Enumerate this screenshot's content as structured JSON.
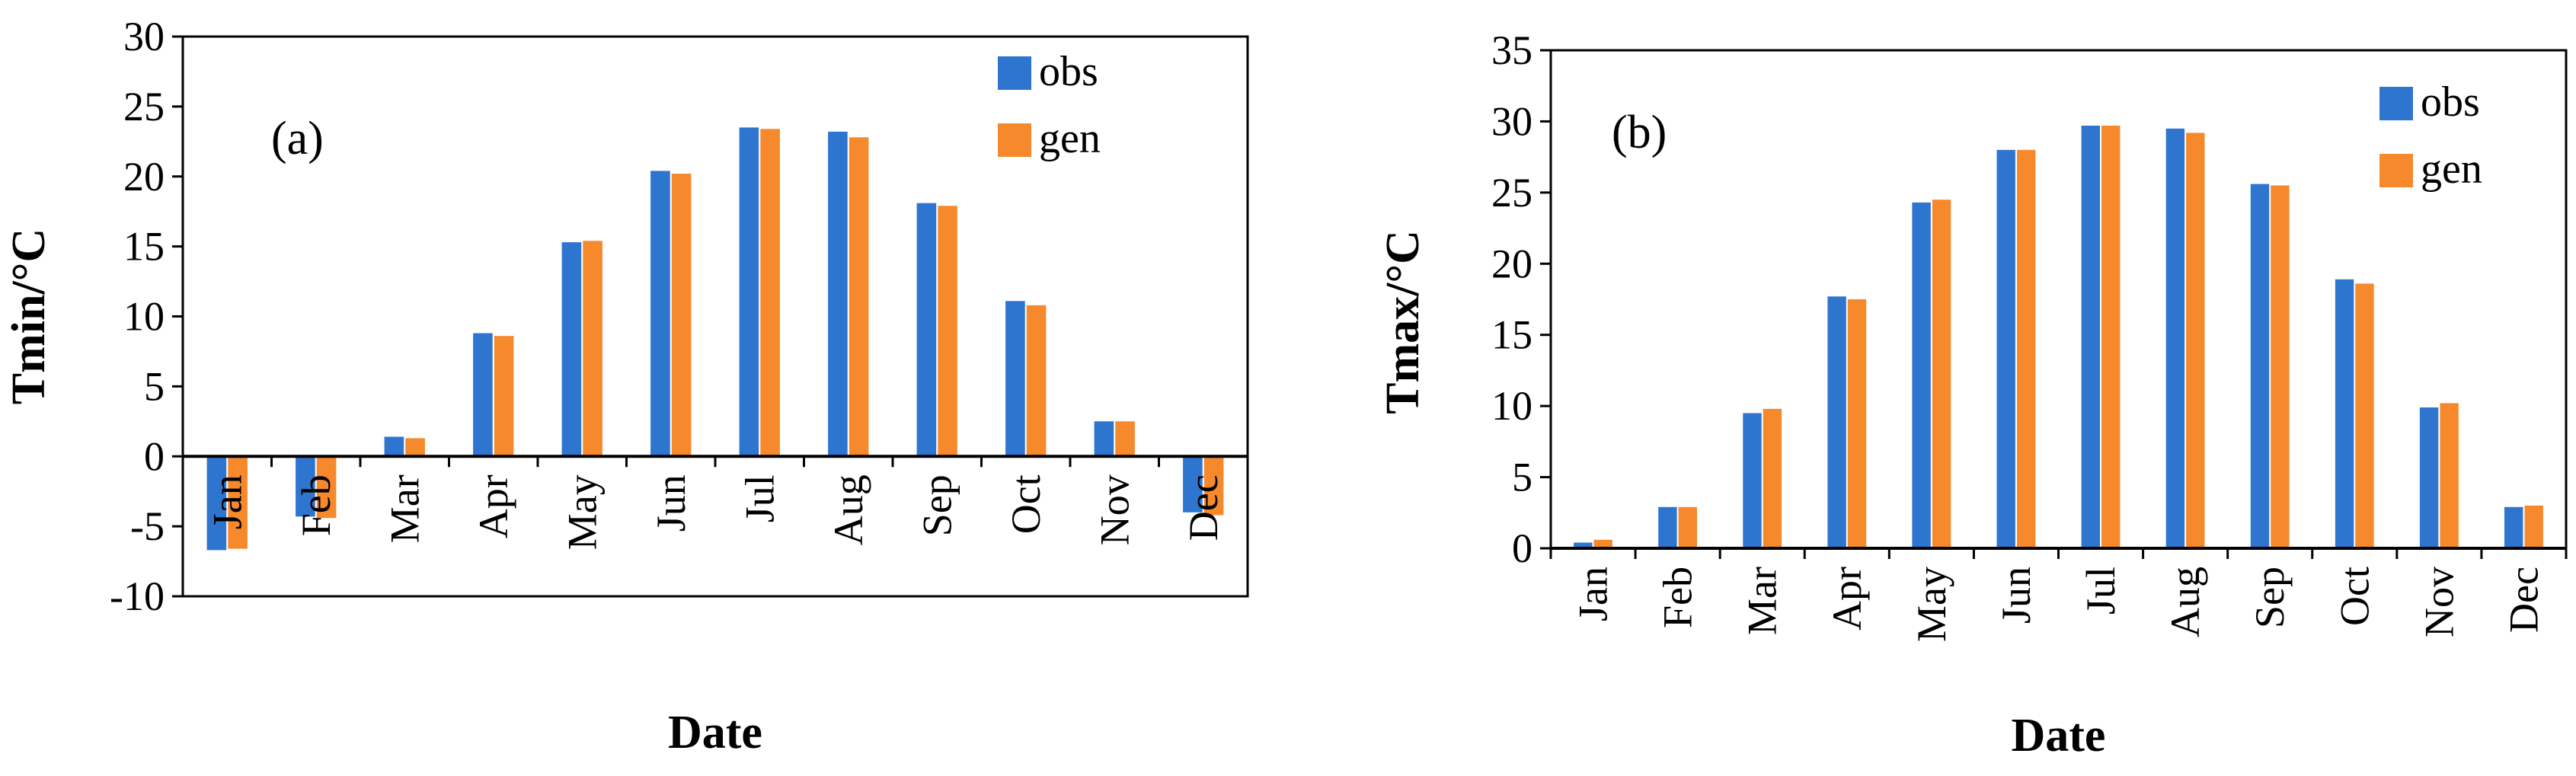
{
  "chart_data": [
    {
      "type": "bar",
      "panel_label": "(a)",
      "categories": [
        "Jan",
        "Feb",
        "Mar",
        "Apr",
        "May",
        "Jun",
        "Jul",
        "Aug",
        "Sep",
        "Oct",
        "Nov",
        "Dec"
      ],
      "series": [
        {
          "name": "obs",
          "color": "#2E75D0",
          "values": [
            -6.7,
            -4.3,
            1.4,
            8.8,
            15.3,
            20.4,
            23.5,
            23.2,
            18.1,
            11.1,
            2.5,
            -4.0
          ]
        },
        {
          "name": "gen",
          "color": "#F7892D",
          "values": [
            -6.6,
            -4.4,
            1.3,
            8.6,
            15.4,
            20.2,
            23.4,
            22.8,
            17.9,
            10.8,
            2.5,
            -4.2
          ]
        }
      ],
      "xlabel": "Date",
      "ylabel": "Tmin/°C",
      "ylim": [
        -10,
        30
      ],
      "yticks": [
        -10,
        -5,
        0,
        5,
        10,
        15,
        20,
        25,
        30
      ],
      "grid": false,
      "legend": "top-right"
    },
    {
      "type": "bar",
      "panel_label": "(b)",
      "categories": [
        "Jan",
        "Feb",
        "Mar",
        "Apr",
        "May",
        "Jun",
        "Jul",
        "Aug",
        "Sep",
        "Oct",
        "Nov",
        "Dec"
      ],
      "series": [
        {
          "name": "obs",
          "color": "#2E75D0",
          "values": [
            0.4,
            2.9,
            9.5,
            17.7,
            24.3,
            28.0,
            29.7,
            29.5,
            25.6,
            18.9,
            9.9,
            2.9
          ]
        },
        {
          "name": "gen",
          "color": "#F7892D",
          "values": [
            0.6,
            2.9,
            9.8,
            17.5,
            24.5,
            28.0,
            29.7,
            29.2,
            25.5,
            18.6,
            10.2,
            3.0
          ]
        }
      ],
      "xlabel": "Date",
      "ylabel": "Tmax/°C",
      "ylim": [
        0,
        35
      ],
      "yticks": [
        0,
        5,
        10,
        15,
        20,
        25,
        30,
        35
      ],
      "grid": false,
      "legend": "top-right"
    }
  ]
}
